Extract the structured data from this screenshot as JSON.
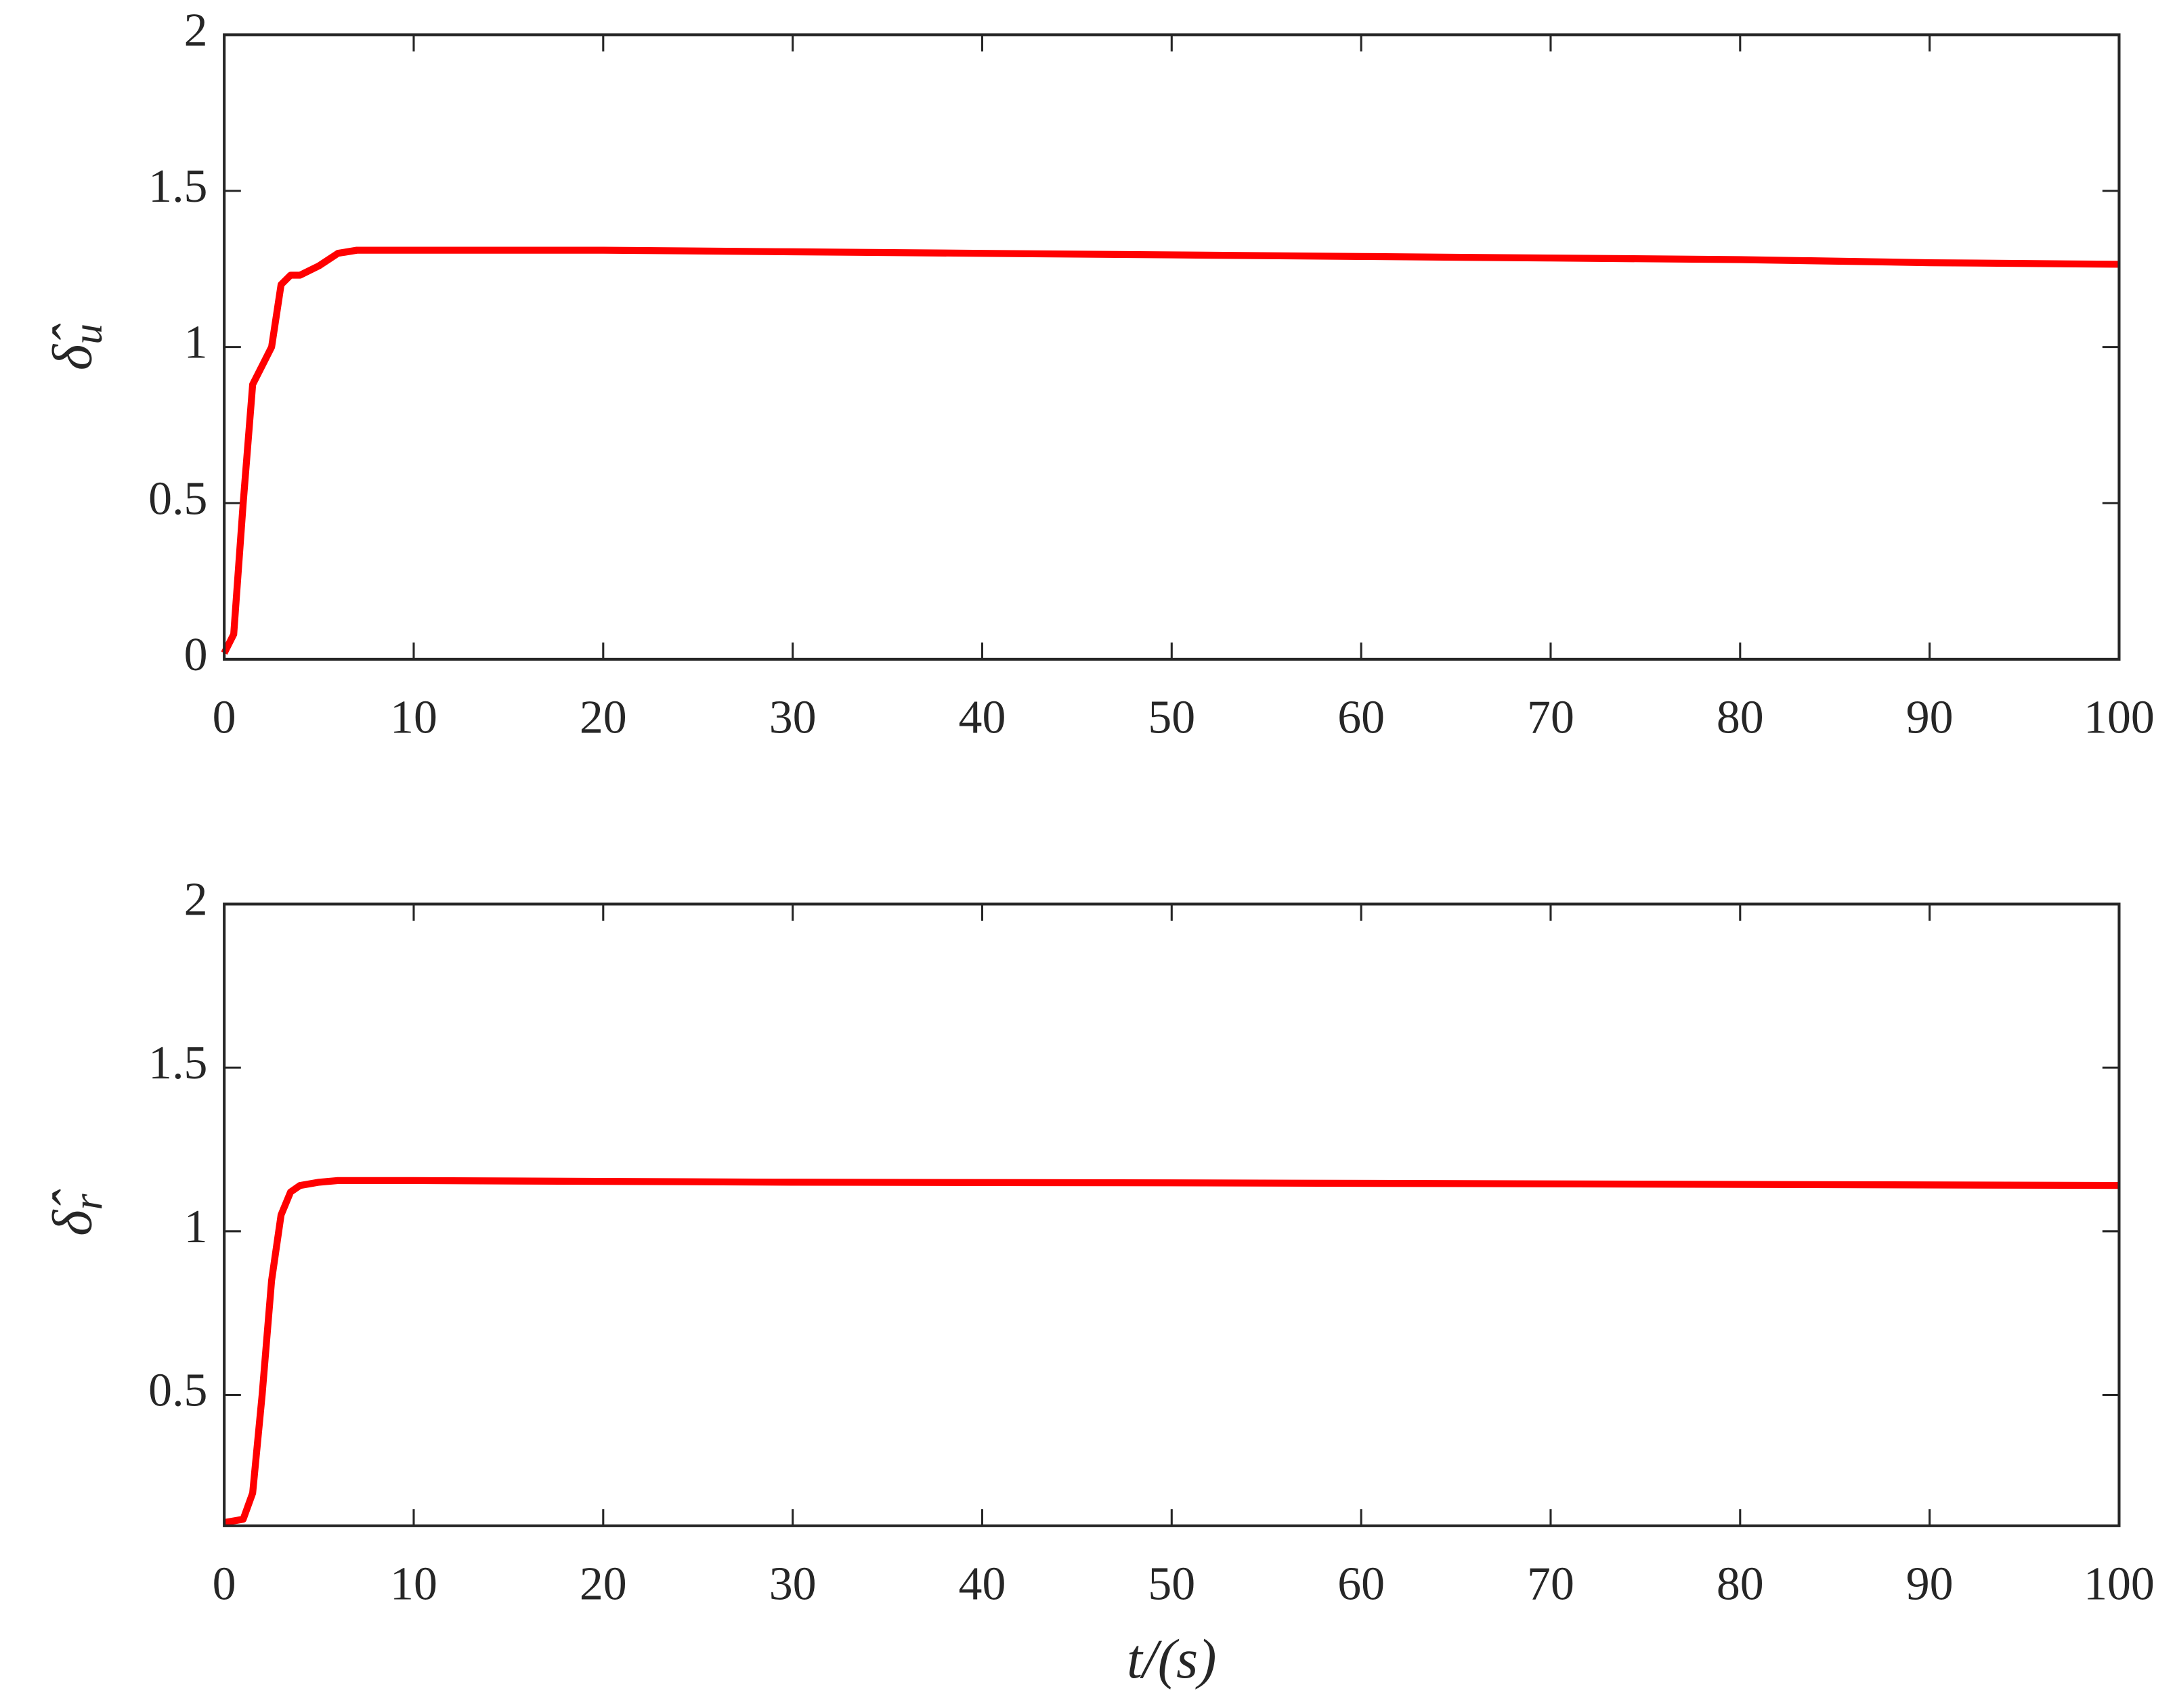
{
  "chart_data": [
    {
      "type": "line",
      "ylabel": "δ̂",
      "ylabel_subscript": "u",
      "xlim": [
        0,
        100
      ],
      "xticks": [
        0,
        10,
        20,
        30,
        40,
        50,
        60,
        70,
        80,
        90,
        100
      ],
      "ylim": [
        0,
        2
      ],
      "yticks": [
        0,
        0.5,
        1,
        1.5,
        2
      ],
      "series": [
        {
          "color": "#ff0000",
          "x": [
            0,
            0.5,
            1,
            1.5,
            2,
            2.5,
            3,
            3.5,
            4,
            5,
            6,
            7,
            10,
            20,
            30,
            40,
            50,
            60,
            70,
            80,
            90,
            100
          ],
          "values": [
            0.02,
            0.08,
            0.5,
            0.88,
            0.94,
            1.0,
            1.2,
            1.23,
            1.23,
            1.26,
            1.3,
            1.31,
            1.31,
            1.31,
            1.305,
            1.3,
            1.295,
            1.29,
            1.285,
            1.28,
            1.27,
            1.265
          ]
        }
      ]
    },
    {
      "type": "line",
      "ylabel": "δ̂",
      "ylabel_subscript": "r",
      "xlabel": "t/(s)",
      "xlim": [
        0,
        100
      ],
      "xticks": [
        0,
        10,
        20,
        30,
        40,
        50,
        60,
        70,
        80,
        90,
        100
      ],
      "ylim": [
        0.1,
        2
      ],
      "yticks": [
        0.5,
        1,
        1.5,
        2
      ],
      "series": [
        {
          "color": "#ff0000",
          "x": [
            0,
            1,
            1.5,
            2,
            2.5,
            3,
            3.5,
            4,
            5,
            6,
            10,
            30,
            50,
            70,
            100
          ],
          "values": [
            0.11,
            0.12,
            0.2,
            0.5,
            0.85,
            1.05,
            1.12,
            1.14,
            1.15,
            1.155,
            1.155,
            1.15,
            1.148,
            1.145,
            1.14
          ]
        }
      ]
    }
  ]
}
